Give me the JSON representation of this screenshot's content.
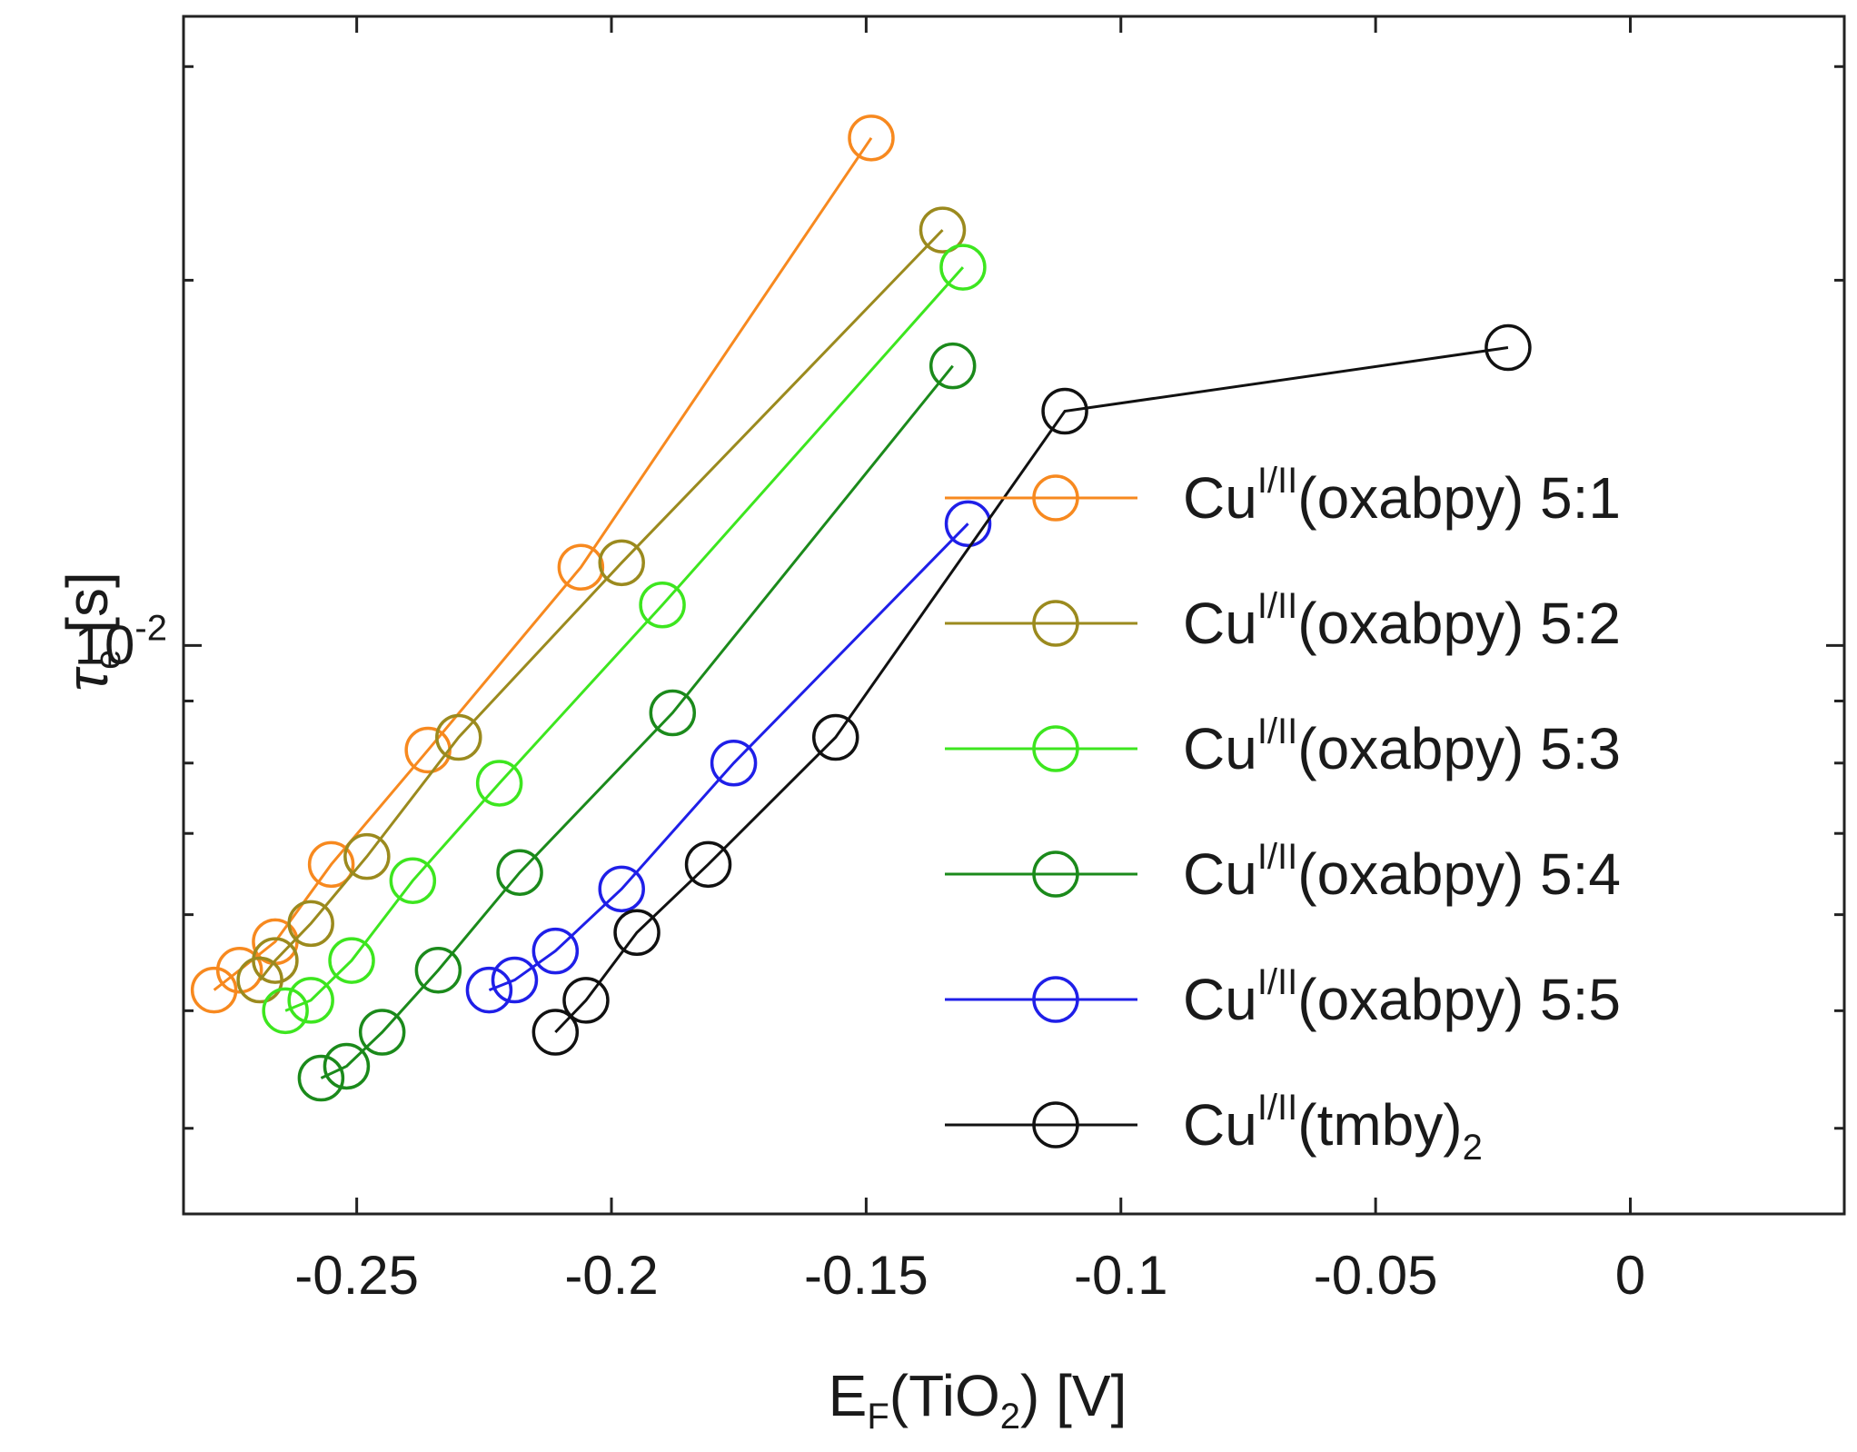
{
  "chart_data": {
    "type": "line",
    "title": "",
    "xlabel": {
      "main": "E",
      "sub": "F",
      "paren": "(TiO",
      "sub2": "2",
      "close": ") [V]"
    },
    "ylabel": {
      "symbol": "τ",
      "sub": "e",
      "unit": " [s]"
    },
    "x_ticks": [
      -0.25,
      -0.2,
      -0.15,
      -0.1,
      -0.05,
      0
    ],
    "x_tick_labels": [
      "-0.25",
      "-0.2",
      "-0.15",
      "-0.1",
      "-0.05",
      "0"
    ],
    "xlim": [
      -0.284,
      0.042
    ],
    "y_scale": "log",
    "ylim": [
      0.0034,
      0.033
    ],
    "y_tick_labels": [
      {
        "base": "10",
        "exp": "-2",
        "value": 0.01
      }
    ],
    "y_minor_ticks": [
      0.004,
      0.005,
      0.006,
      0.007,
      0.008,
      0.009,
      0.02,
      0.03
    ],
    "grid": false,
    "legend_position": "right",
    "series": [
      {
        "name": "Cu(oxabpy) 5:1",
        "label": {
          "prefix": "Cu",
          "sup": "I/II",
          "suffix": "(oxabpy) 5:1"
        },
        "color": "#f7891f",
        "points": [
          [
            -0.278,
            0.0052
          ],
          [
            -0.273,
            0.0054
          ],
          [
            -0.266,
            0.0057
          ],
          [
            -0.255,
            0.0066
          ],
          [
            -0.236,
            0.0082
          ],
          [
            -0.206,
            0.0116
          ],
          [
            -0.149,
            0.0262
          ]
        ]
      },
      {
        "name": "Cu(oxabpy) 5:2",
        "label": {
          "prefix": "Cu",
          "sup": "I/II",
          "suffix": "(oxabpy) 5:2"
        },
        "color": "#9b8a1e",
        "points": [
          [
            -0.269,
            0.0053
          ],
          [
            -0.266,
            0.0055
          ],
          [
            -0.259,
            0.0059
          ],
          [
            -0.248,
            0.0067
          ],
          [
            -0.23,
            0.0084
          ],
          [
            -0.198,
            0.0117
          ],
          [
            -0.135,
            0.022
          ]
        ]
      },
      {
        "name": "Cu(oxabpy) 5:3",
        "label": {
          "prefix": "Cu",
          "sup": "I/II",
          "suffix": "(oxabpy) 5:3"
        },
        "color": "#3de61f",
        "points": [
          [
            -0.264,
            0.005
          ],
          [
            -0.259,
            0.0051
          ],
          [
            -0.251,
            0.0055
          ],
          [
            -0.239,
            0.0064
          ],
          [
            -0.222,
            0.0077
          ],
          [
            -0.19,
            0.0108
          ],
          [
            -0.131,
            0.0205
          ]
        ]
      },
      {
        "name": "Cu(oxabpy) 5:4",
        "label": {
          "prefix": "Cu",
          "sup": "I/II",
          "suffix": "(oxabpy) 5:4"
        },
        "color": "#1b8a1b",
        "points": [
          [
            -0.257,
            0.0044
          ],
          [
            -0.252,
            0.0045
          ],
          [
            -0.245,
            0.0048
          ],
          [
            -0.234,
            0.0054
          ],
          [
            -0.218,
            0.0065
          ],
          [
            -0.188,
            0.0088
          ],
          [
            -0.133,
            0.017
          ]
        ]
      },
      {
        "name": "Cu(oxabpy) 5:5",
        "label": {
          "prefix": "Cu",
          "sup": "I/II",
          "suffix": "(oxabpy) 5:5"
        },
        "color": "#1f1fe8",
        "points": [
          [
            -0.224,
            0.0052
          ],
          [
            -0.219,
            0.0053
          ],
          [
            -0.211,
            0.0056
          ],
          [
            -0.198,
            0.0063
          ],
          [
            -0.176,
            0.008
          ],
          [
            -0.13,
            0.0126
          ]
        ]
      },
      {
        "name": "Cu(tmby)2",
        "label": {
          "prefix": "Cu",
          "sup": "I/II",
          "suffix": "(tmby)",
          "sub": "2"
        },
        "color": "#111111",
        "points": [
          [
            -0.211,
            0.0048
          ],
          [
            -0.205,
            0.0051
          ],
          [
            -0.195,
            0.0058
          ],
          [
            -0.181,
            0.0066
          ],
          [
            -0.156,
            0.0084
          ],
          [
            -0.111,
            0.0156
          ],
          [
            -0.024,
            0.0176
          ]
        ]
      }
    ]
  }
}
